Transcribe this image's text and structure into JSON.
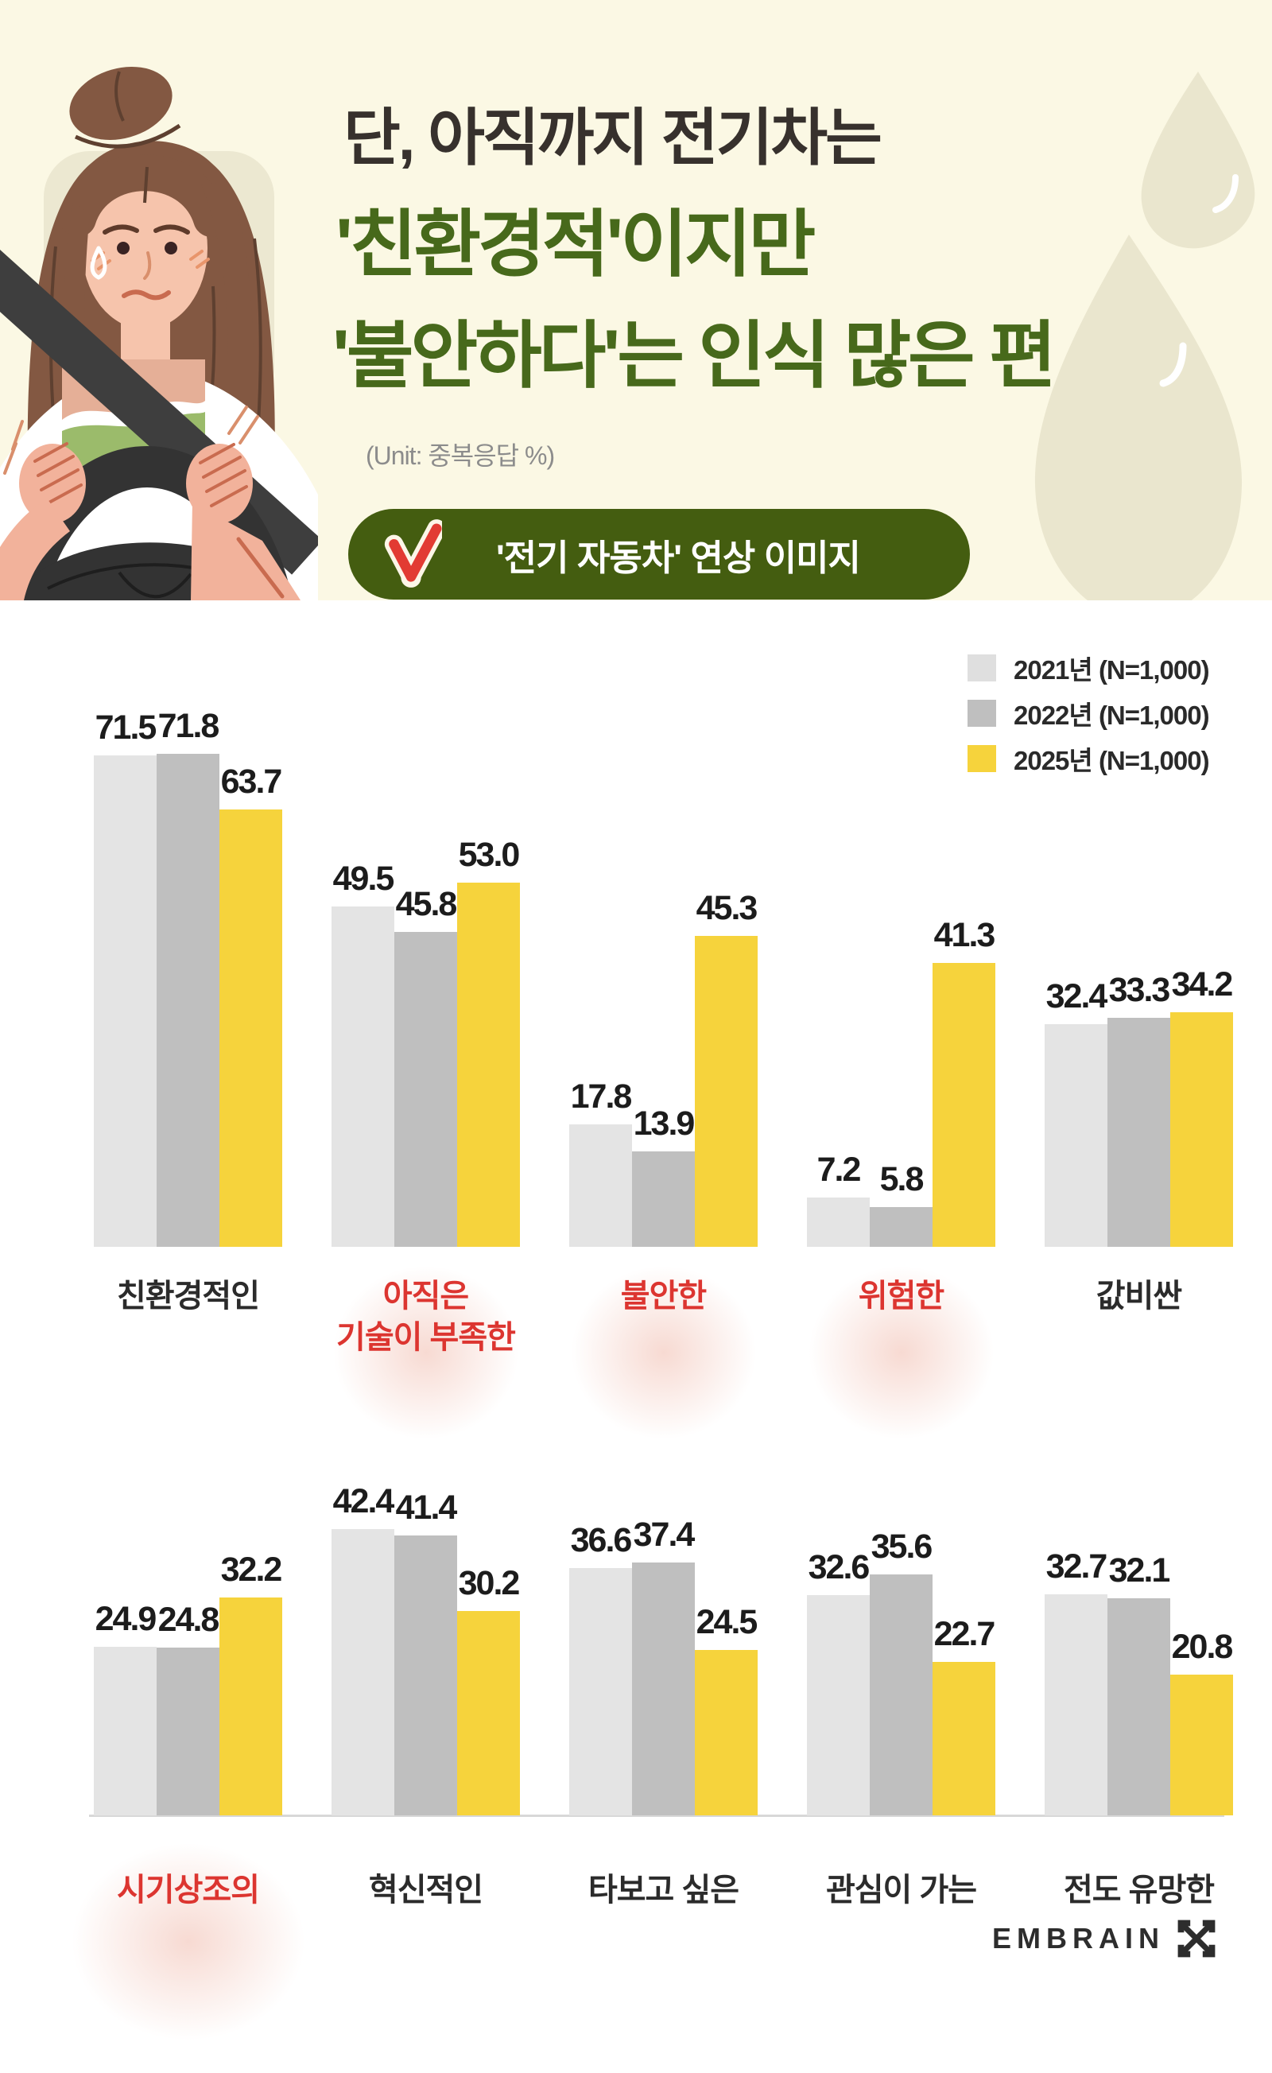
{
  "header": {
    "title_line1": "단, 아직까지 전기차는",
    "title_line2": "'친환경적'이지만",
    "title_line3": "'불안하다'는 인식 많은 편",
    "unit_note": "(Unit: 중복응답 %)",
    "badge_label": "'전기 자동차' 연상 이미지",
    "colors": {
      "header_bg": "#FBF8E4",
      "title_dark": "#37312D",
      "title_green": "#47691B",
      "badge_bg": "#445D10",
      "badge_check_red": "#E23B33",
      "drop_beige": "#EAE6CE"
    }
  },
  "legend": {
    "items": [
      {
        "label": "2021년 (N=1,000)",
        "color": "#DFDFDF"
      },
      {
        "label": "2022년 (N=1,000)",
        "color": "#BFBFBF"
      },
      {
        "label": "2025년 (N=1,000)",
        "color": "#F6D33C"
      }
    ]
  },
  "chart_data": [
    {
      "type": "bar",
      "title": "'전기 자동차' 연상 이미지 (상단: 부정/속성 이미지)",
      "unit": "중복응답 %",
      "grid": false,
      "legend_position": "top-right",
      "ylim": [
        0,
        80
      ],
      "categories": [
        {
          "label": "친환경적인",
          "highlight": false
        },
        {
          "label": "아직은\n기술이 부족한",
          "highlight": true
        },
        {
          "label": "불안한",
          "highlight": true
        },
        {
          "label": "위험한",
          "highlight": true
        },
        {
          "label": "값비싼",
          "highlight": false
        }
      ],
      "series": [
        {
          "name": "2021년 (N=1,000)",
          "color": "#E4E4E4",
          "values": [
            71.5,
            49.5,
            17.8,
            7.2,
            32.4
          ]
        },
        {
          "name": "2022년 (N=1,000)",
          "color": "#BFBFBF",
          "values": [
            71.8,
            45.8,
            13.9,
            5.8,
            33.3
          ]
        },
        {
          "name": "2025년 (N=1,000)",
          "color": "#F6D33C",
          "values": [
            63.7,
            53.0,
            45.3,
            41.3,
            34.2
          ]
        }
      ]
    },
    {
      "type": "bar",
      "title": "'전기 자동차' 연상 이미지 (하단: 평가 이미지)",
      "unit": "중복응답 %",
      "grid": false,
      "legend_position": "shared",
      "ylim": [
        0,
        50
      ],
      "categories": [
        {
          "label": "시기상조의",
          "highlight": true
        },
        {
          "label": "혁신적인",
          "highlight": false
        },
        {
          "label": "타보고 싶은",
          "highlight": false
        },
        {
          "label": "관심이 가는",
          "highlight": false
        },
        {
          "label": "전도 유망한",
          "highlight": false
        }
      ],
      "series": [
        {
          "name": "2021년 (N=1,000)",
          "color": "#E4E4E4",
          "values": [
            24.9,
            42.4,
            36.6,
            32.6,
            32.7
          ]
        },
        {
          "name": "2022년 (N=1,000)",
          "color": "#BFBFBF",
          "values": [
            24.8,
            41.4,
            37.4,
            35.6,
            32.1
          ]
        },
        {
          "name": "2025년 (N=1,000)",
          "color": "#F6D33C",
          "values": [
            32.2,
            30.2,
            24.5,
            22.7,
            20.8
          ]
        }
      ]
    }
  ],
  "footer": {
    "brand": "EMBRAIN"
  }
}
